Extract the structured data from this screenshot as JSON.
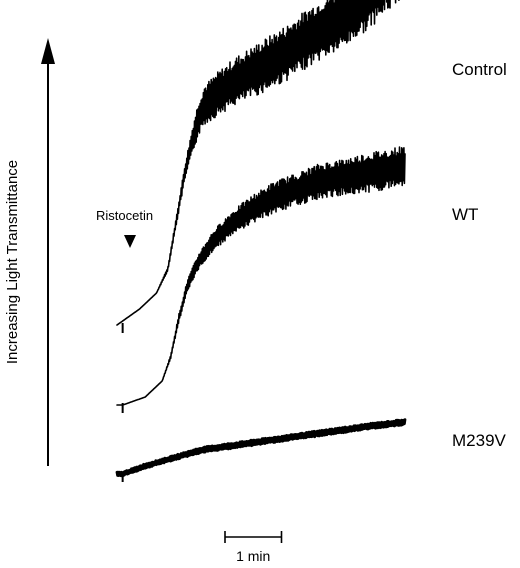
{
  "chart_data": {
    "type": "line",
    "title": "",
    "xlabel": "",
    "ylabel": "Increasing Light Transmittance",
    "x_unit": "min",
    "x_range": [
      0,
      5.1
    ],
    "y_range": [
      0,
      1.0
    ],
    "grid": false,
    "legend": "none",
    "scale_bar": {
      "label": "1 min",
      "length": 1
    },
    "annotations": [
      {
        "text": "Ristocetin",
        "x": 0.1,
        "marker": "down-triangle"
      }
    ],
    "series": [
      {
        "name": "Control",
        "x": [
          0,
          0.1,
          0.4,
          0.7,
          0.9,
          1.05,
          1.2,
          1.35,
          1.45,
          1.55,
          1.8,
          2.1,
          2.5,
          3.0,
          3.5,
          4.0,
          4.5,
          4.85,
          5.05,
          5.1
        ],
        "y": [
          0.0,
          0.01,
          0.04,
          0.08,
          0.14,
          0.26,
          0.38,
          0.47,
          0.52,
          0.55,
          0.58,
          0.61,
          0.64,
          0.68,
          0.73,
          0.77,
          0.83,
          0.88,
          0.92,
          0.93
        ],
        "noise": [
          0,
          0,
          0,
          0,
          0.005,
          0.01,
          0.02,
          0.035,
          0.045,
          0.05,
          0.055,
          0.06,
          0.065,
          0.07,
          0.075,
          0.08,
          0.085,
          0.09,
          0.1,
          0.1
        ],
        "label_y": 0.98
      },
      {
        "name": "WT",
        "x": [
          0,
          0.1,
          0.5,
          0.8,
          0.95,
          1.1,
          1.25,
          1.45,
          1.7,
          2.0,
          2.4,
          2.8,
          3.2,
          3.6,
          4.0,
          4.4,
          4.8,
          5.1
        ],
        "y": [
          0.0,
          0.0,
          0.02,
          0.06,
          0.12,
          0.22,
          0.3,
          0.36,
          0.41,
          0.45,
          0.49,
          0.52,
          0.54,
          0.56,
          0.57,
          0.58,
          0.59,
          0.6
        ],
        "noise": [
          0,
          0,
          0,
          0,
          0.005,
          0.01,
          0.015,
          0.02,
          0.025,
          0.03,
          0.035,
          0.04,
          0.04,
          0.045,
          0.045,
          0.05,
          0.05,
          0.05
        ],
        "label_y": 0.62
      },
      {
        "name": "M239V",
        "x": [
          0,
          0.1,
          0.5,
          1.0,
          1.5,
          2.0,
          2.5,
          3.0,
          3.5,
          4.0,
          4.5,
          5.1
        ],
        "y": [
          0.0,
          0.0,
          0.02,
          0.04,
          0.06,
          0.07,
          0.08,
          0.09,
          0.1,
          0.11,
          0.12,
          0.13
        ],
        "noise": [
          0.005,
          0.005,
          0.006,
          0.006,
          0.007,
          0.007,
          0.007,
          0.007,
          0.007,
          0.007,
          0.007,
          0.007
        ],
        "label_y": 0.12
      }
    ]
  }
}
